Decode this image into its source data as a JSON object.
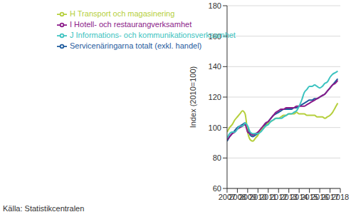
{
  "chart_data": {
    "type": "line",
    "y_label": "Index (2010=100)",
    "source": "Källa: Statistikcentralen",
    "legend": "upper left",
    "grid": true,
    "x": [
      2007,
      2007.25,
      2007.5,
      2007.75,
      2008,
      2008.25,
      2008.5,
      2008.75,
      2009,
      2009.25,
      2009.5,
      2009.75,
      2010,
      2010.25,
      2010.5,
      2010.75,
      2011,
      2011.25,
      2011.5,
      2011.75,
      2012,
      2012.25,
      2012.5,
      2012.75,
      2013,
      2013.25,
      2013.5,
      2013.75,
      2014,
      2014.25,
      2014.5,
      2014.75,
      2015,
      2015.25,
      2015.5,
      2015.75,
      2016,
      2016.25,
      2016.5,
      2016.75,
      2017,
      2017.25,
      2017.5,
      2017.75
    ],
    "xlim": [
      2007,
      2018
    ],
    "xticks": [
      2007,
      2008,
      2009,
      2010,
      2011,
      2012,
      2013,
      2014,
      2015,
      2016,
      2017,
      2018
    ],
    "ylim": [
      60,
      180
    ],
    "yticks": [
      60,
      80,
      100,
      120,
      140,
      160,
      180
    ],
    "series": [
      {
        "name": "Servicenäringarna totalt (exkl. handel)",
        "color": "#1f5c9e",
        "values": [
          91,
          94,
          96,
          98,
          100,
          101,
          102,
          103,
          100,
          95,
          94,
          95,
          96,
          98,
          100,
          102,
          104,
          106,
          108,
          109,
          110,
          111,
          112,
          112,
          112,
          112,
          113,
          113,
          114,
          115,
          116,
          117,
          118,
          118,
          119,
          119,
          120,
          121,
          122,
          124,
          126,
          128,
          130,
          132
        ]
      },
      {
        "name": "H Transport och magasinering",
        "color": "#b5cf3c",
        "values": [
          97,
          100,
          102,
          105,
          107,
          109,
          111,
          109,
          97,
          92,
          91,
          93,
          95,
          98,
          100,
          101,
          103,
          104,
          105,
          106,
          106,
          107,
          108,
          108,
          109,
          109,
          109,
          110,
          109,
          109,
          109,
          108,
          108,
          108,
          108,
          107,
          107,
          107,
          106,
          107,
          108,
          110,
          113,
          116
        ]
      },
      {
        "name": "I Hotell- och restaurangverksamhet",
        "color": "#8b1a89",
        "values": [
          92,
          94,
          96,
          97,
          99,
          100,
          101,
          102,
          97,
          96,
          95,
          96,
          97,
          99,
          101,
          103,
          104,
          106,
          108,
          110,
          111,
          112,
          112,
          113,
          113,
          113,
          113,
          114,
          114,
          114,
          114,
          115,
          116,
          117,
          118,
          119,
          120,
          121,
          122,
          124,
          126,
          128,
          129,
          131
        ]
      },
      {
        "name": "J Informations- och kommunikationsverksamhet",
        "color": "#3cc3c0",
        "values": [
          93,
          96,
          97,
          97,
          99,
          101,
          101,
          103,
          101,
          97,
          96,
          96,
          96,
          97,
          99,
          101,
          102,
          104,
          105,
          106,
          106,
          106,
          107,
          108,
          109,
          109,
          110,
          111,
          114,
          118,
          123,
          125,
          127,
          127,
          128,
          127,
          126,
          127,
          129,
          130,
          133,
          135,
          136,
          137
        ]
      }
    ]
  }
}
